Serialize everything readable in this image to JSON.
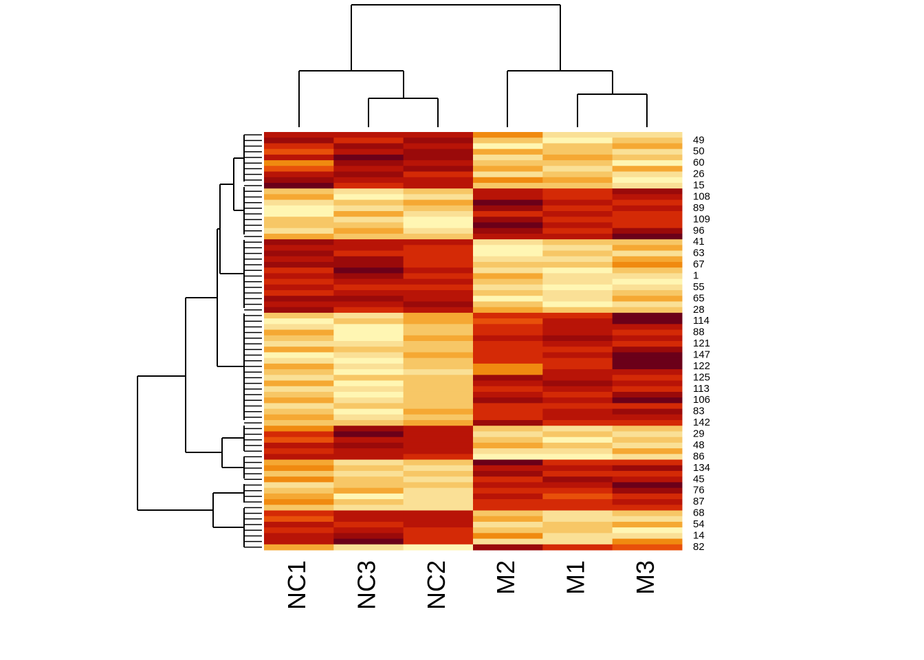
{
  "chart_data": {
    "type": "heatmap",
    "columns": [
      "NC1",
      "NC3",
      "NC2",
      "M2",
      "M1",
      "M3"
    ],
    "rows": [
      null,
      "49",
      null,
      "50",
      null,
      "60",
      null,
      "26",
      null,
      "15",
      null,
      "108",
      null,
      "89",
      null,
      "109",
      null,
      "96",
      null,
      "41",
      null,
      "63",
      null,
      "67",
      null,
      "1",
      null,
      "55",
      null,
      "65",
      null,
      "28",
      null,
      "114",
      null,
      "88",
      null,
      "121",
      null,
      "147",
      null,
      "122",
      null,
      "125",
      null,
      "113",
      null,
      "106",
      null,
      "83",
      null,
      "142",
      null,
      "29",
      null,
      "48",
      null,
      "86",
      null,
      "134",
      null,
      "45",
      null,
      "76",
      null,
      "87",
      null,
      "68",
      null,
      "54",
      null,
      "14",
      null,
      "82"
    ],
    "colors": [
      "#6b0019",
      "#9a0a0a",
      "#b81407",
      "#d42a06",
      "#e8500a",
      "#f08a10",
      "#f5a833",
      "#f7c766",
      "#fae096",
      "#fff6b3"
    ],
    "values": [
      [
        2,
        2,
        2,
        5,
        8,
        8
      ],
      [
        1,
        3,
        1,
        7,
        9,
        7
      ],
      [
        3,
        1,
        2,
        9,
        7,
        6
      ],
      [
        4,
        2,
        1,
        6,
        7,
        8
      ],
      [
        2,
        0,
        1,
        8,
        6,
        7
      ],
      [
        5,
        1,
        2,
        7,
        7,
        9
      ],
      [
        4,
        2,
        1,
        6,
        8,
        6
      ],
      [
        2,
        1,
        3,
        8,
        7,
        8
      ],
      [
        1,
        2,
        2,
        5,
        6,
        9
      ],
      [
        0,
        3,
        2,
        7,
        7,
        8
      ],
      [
        7,
        8,
        7,
        2,
        3,
        1
      ],
      [
        6,
        9,
        8,
        2,
        3,
        2
      ],
      [
        8,
        7,
        6,
        0,
        2,
        3
      ],
      [
        9,
        8,
        7,
        1,
        3,
        2
      ],
      [
        9,
        6,
        8,
        3,
        2,
        3
      ],
      [
        7,
        8,
        9,
        1,
        3,
        3
      ],
      [
        7,
        7,
        9,
        0,
        2,
        3
      ],
      [
        8,
        6,
        8,
        1,
        3,
        1
      ],
      [
        6,
        7,
        7,
        2,
        2,
        0
      ],
      [
        1,
        2,
        2,
        8,
        7,
        7
      ],
      [
        2,
        2,
        3,
        9,
        8,
        6
      ],
      [
        1,
        3,
        3,
        9,
        7,
        8
      ],
      [
        2,
        1,
        3,
        8,
        8,
        6
      ],
      [
        1,
        1,
        3,
        7,
        7,
        5
      ],
      [
        3,
        0,
        2,
        8,
        9,
        7
      ],
      [
        2,
        1,
        3,
        6,
        8,
        8
      ],
      [
        3,
        2,
        2,
        7,
        8,
        9
      ],
      [
        2,
        3,
        3,
        8,
        9,
        8
      ],
      [
        3,
        2,
        2,
        7,
        8,
        7
      ],
      [
        1,
        1,
        2,
        9,
        8,
        6
      ],
      [
        2,
        2,
        1,
        7,
        9,
        8
      ],
      [
        1,
        3,
        2,
        6,
        7,
        7
      ],
      [
        7,
        8,
        6,
        3,
        3,
        0
      ],
      [
        9,
        7,
        6,
        4,
        2,
        0
      ],
      [
        8,
        9,
        7,
        3,
        2,
        2
      ],
      [
        6,
        9,
        7,
        3,
        2,
        3
      ],
      [
        7,
        9,
        6,
        2,
        1,
        2
      ],
      [
        8,
        8,
        7,
        3,
        2,
        3
      ],
      [
        6,
        7,
        7,
        3,
        3,
        1
      ],
      [
        9,
        8,
        6,
        3,
        2,
        0
      ],
      [
        8,
        9,
        7,
        3,
        3,
        0
      ],
      [
        6,
        8,
        7,
        5,
        3,
        0
      ],
      [
        7,
        9,
        8,
        5,
        2,
        2
      ],
      [
        8,
        7,
        7,
        1,
        2,
        3
      ],
      [
        6,
        9,
        7,
        2,
        1,
        2
      ],
      [
        8,
        8,
        7,
        3,
        2,
        3
      ],
      [
        7,
        9,
        7,
        2,
        3,
        1
      ],
      [
        6,
        8,
        7,
        1,
        2,
        0
      ],
      [
        8,
        7,
        7,
        3,
        3,
        3
      ],
      [
        7,
        9,
        6,
        3,
        2,
        1
      ],
      [
        6,
        8,
        7,
        3,
        2,
        2
      ],
      [
        7,
        7,
        6,
        1,
        3,
        3
      ],
      [
        5,
        1,
        2,
        7,
        8,
        7
      ],
      [
        3,
        0,
        2,
        8,
        7,
        8
      ],
      [
        4,
        2,
        2,
        7,
        9,
        7
      ],
      [
        2,
        1,
        2,
        6,
        7,
        8
      ],
      [
        3,
        2,
        2,
        8,
        8,
        6
      ],
      [
        2,
        2,
        3,
        9,
        9,
        8
      ],
      [
        6,
        8,
        7,
        0,
        3,
        3
      ],
      [
        5,
        7,
        8,
        2,
        2,
        1
      ],
      [
        7,
        8,
        7,
        1,
        3,
        3
      ],
      [
        5,
        7,
        8,
        3,
        1,
        2
      ],
      [
        8,
        7,
        7,
        2,
        2,
        0
      ],
      [
        7,
        6,
        8,
        3,
        3,
        1
      ],
      [
        6,
        9,
        8,
        2,
        4,
        3
      ],
      [
        5,
        7,
        8,
        3,
        3,
        2
      ],
      [
        7,
        8,
        8,
        3,
        3,
        3
      ],
      [
        3,
        2,
        2,
        7,
        8,
        7
      ],
      [
        4,
        2,
        2,
        6,
        8,
        8
      ],
      [
        2,
        3,
        2,
        8,
        7,
        6
      ],
      [
        3,
        2,
        3,
        7,
        7,
        9
      ],
      [
        2,
        1,
        3,
        5,
        8,
        8
      ],
      [
        2,
        0,
        3,
        8,
        8,
        5
      ],
      [
        6,
        8,
        9,
        1,
        3,
        4
      ]
    ]
  }
}
